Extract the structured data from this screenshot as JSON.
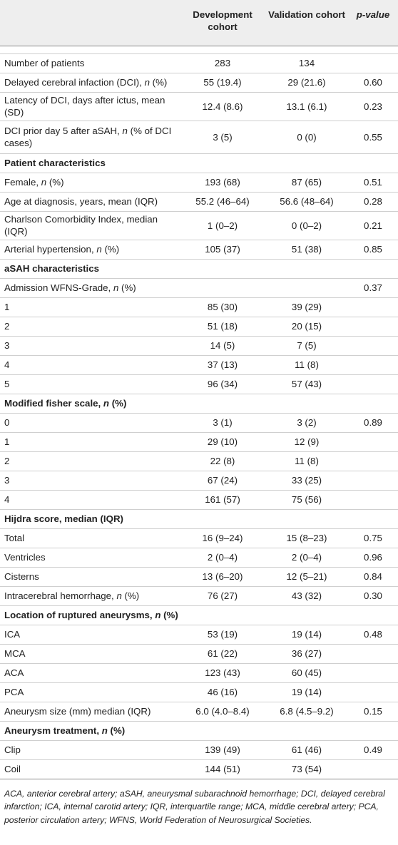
{
  "header": {
    "col1": "",
    "col2": "Development cohort",
    "col3": "Validation cohort",
    "col4": "p-value"
  },
  "rows": [
    {
      "label": "Number of patients",
      "dev": "283",
      "val": "134",
      "p": ""
    },
    {
      "label": "Delayed cerebral infaction (DCI), n (%)",
      "dev": "55 (19.4)",
      "val": "29 (21.6)",
      "p": "0.60"
    },
    {
      "label": "Latency of DCI, days after ictus, mean (SD)",
      "dev": "12.4 (8.6)",
      "val": "13.1 (6.1)",
      "p": "0.23"
    },
    {
      "label": "DCI prior day 5 after aSAH, n (% of DCI cases)",
      "dev": "3 (5)",
      "val": "0 (0)",
      "p": "0.55"
    },
    {
      "section": "Patient characteristics"
    },
    {
      "label": "Female, n (%)",
      "dev": "193 (68)",
      "val": "87 (65)",
      "p": "0.51"
    },
    {
      "label": "Age at diagnosis, years, mean (IQR)",
      "dev": "55.2 (46–64)",
      "val": "56.6 (48–64)",
      "p": "0.28"
    },
    {
      "label": "Charlson Comorbidity Index, median (IQR)",
      "dev": "1 (0–2)",
      "val": "0 (0–2)",
      "p": "0.21"
    },
    {
      "label": "Arterial hypertension, n (%)",
      "dev": "105 (37)",
      "val": "51 (38)",
      "p": "0.85"
    },
    {
      "section": "aSAH characteristics"
    },
    {
      "label": "Admission WFNS-Grade, n (%)",
      "dev": "",
      "val": "",
      "p": "0.37"
    },
    {
      "label": "1",
      "dev": "85 (30)",
      "val": "39 (29)",
      "p": ""
    },
    {
      "label": "2",
      "dev": "51 (18)",
      "val": "20 (15)",
      "p": ""
    },
    {
      "label": "3",
      "dev": "14 (5)",
      "val": "7 (5)",
      "p": ""
    },
    {
      "label": "4",
      "dev": "37 (13)",
      "val": "11 (8)",
      "p": ""
    },
    {
      "label": "5",
      "dev": "96 (34)",
      "val": "57 (43)",
      "p": ""
    },
    {
      "section": "Modified fisher scale, n (%)"
    },
    {
      "label": "0",
      "dev": "3 (1)",
      "val": "3 (2)",
      "p": "0.89"
    },
    {
      "label": "1",
      "dev": "29 (10)",
      "val": "12 (9)",
      "p": ""
    },
    {
      "label": "2",
      "dev": "22 (8)",
      "val": "11 (8)",
      "p": ""
    },
    {
      "label": "3",
      "dev": "67 (24)",
      "val": "33 (25)",
      "p": ""
    },
    {
      "label": "4",
      "dev": "161 (57)",
      "val": "75 (56)",
      "p": ""
    },
    {
      "section": "Hijdra score, median (IQR)"
    },
    {
      "label": "Total",
      "dev": "16 (9–24)",
      "val": "15 (8–23)",
      "p": "0.75"
    },
    {
      "label": "Ventricles",
      "dev": "2 (0–4)",
      "val": "2 (0–4)",
      "p": "0.96"
    },
    {
      "label": "Cisterns",
      "dev": "13 (6–20)",
      "val": "12 (5–21)",
      "p": "0.84"
    },
    {
      "label": "Intracerebral hemorrhage, n (%)",
      "dev": "76 (27)",
      "val": "43 (32)",
      "p": "0.30"
    },
    {
      "section": "Location of ruptured aneurysms, n (%)"
    },
    {
      "label": "ICA",
      "dev": "53 (19)",
      "val": "19 (14)",
      "p": "0.48"
    },
    {
      "label": "MCA",
      "dev": "61 (22)",
      "val": "36 (27)",
      "p": ""
    },
    {
      "label": "ACA",
      "dev": "123 (43)",
      "val": "60 (45)",
      "p": ""
    },
    {
      "label": "PCA",
      "dev": "46 (16)",
      "val": "19 (14)",
      "p": ""
    },
    {
      "label": "Aneurysm size (mm) median (IQR)",
      "dev": "6.0 (4.0–8.4)",
      "val": "6.8 (4.5–9.2)",
      "p": "0.15"
    },
    {
      "section": "Aneurysm treatment, n (%)"
    },
    {
      "label": "Clip",
      "dev": "139 (49)",
      "val": "61 (46)",
      "p": "0.49"
    },
    {
      "label": "Coil",
      "dev": "144 (51)",
      "val": "73 (54)",
      "p": ""
    }
  ],
  "footnote": "ACA, anterior cerebral artery; aSAH, aneurysmal subarachnoid hemorrhage; DCI, delayed cerebral infarction; ICA, internal carotid artery; IQR, interquartile range; MCA, middle cerebral artery; PCA, posterior circulation artery; WFNS, World Federation of Neurosurgical Societies."
}
